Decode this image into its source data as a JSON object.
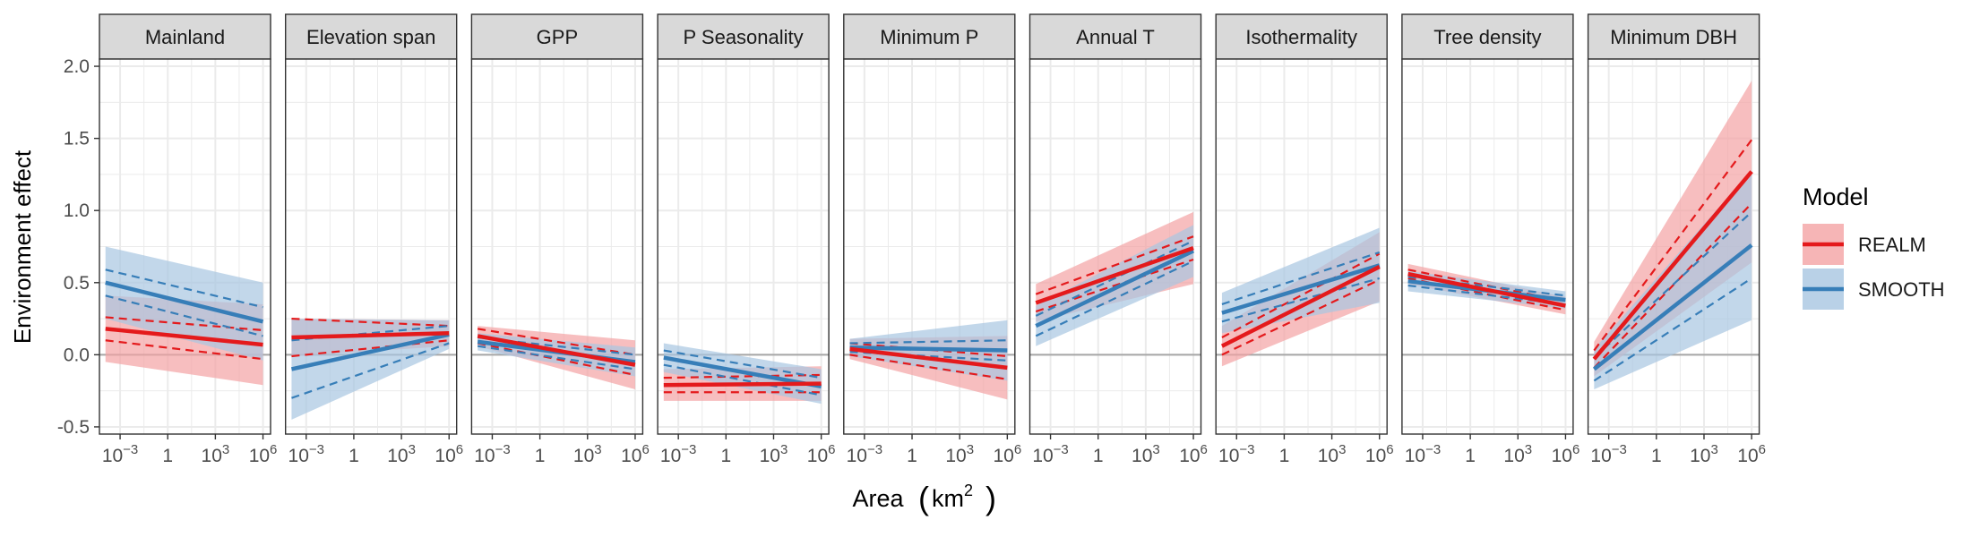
{
  "chart_data": {
    "type": "line",
    "facet_by": "Environment variable",
    "xlabel_main": "Area",
    "xlabel_unit_base": "km",
    "xlabel_unit_exp": "2",
    "ylabel": "Environment effect",
    "x_scale": "log10",
    "x_range_km2": [
      5e-05,
      3000000
    ],
    "x_ticks": [
      {
        "value": 0.001,
        "base": "10",
        "exp": "−3"
      },
      {
        "value": 1,
        "base": "1",
        "exp": ""
      },
      {
        "value": 1000,
        "base": "10",
        "exp": "3"
      },
      {
        "value": 1000000,
        "base": "10",
        "exp": "6"
      }
    ],
    "y_range": [
      -0.55,
      2.05
    ],
    "y_ticks": [
      "2.0",
      "1.5",
      "1.0",
      "0.5",
      "0.0",
      "-0.5"
    ],
    "reference_line_y": 0,
    "grid": true,
    "legend_title": "Model",
    "legend_position": "right",
    "series": [
      {
        "name": "REALM",
        "color": "#e41a1c",
        "band_color": "#f4a3a4"
      },
      {
        "name": "SMOOTH",
        "color": "#377eb8",
        "band_color": "#a8c6e1"
      }
    ],
    "panels": [
      {
        "title": "Mainland",
        "REALM": {
          "start": 0.18,
          "end": 0.07,
          "inner": [
            0.08,
            0.1
          ],
          "outer": [
            0.23,
            0.28
          ]
        },
        "SMOOTH": {
          "start": 0.5,
          "end": 0.23,
          "inner": [
            0.09,
            0.1
          ],
          "outer": [
            0.25,
            0.27
          ]
        }
      },
      {
        "title": "Elevation span",
        "REALM": {
          "start": 0.12,
          "end": 0.15,
          "inner": [
            0.13,
            0.05
          ],
          "outer": [
            0.13,
            0.09
          ]
        },
        "SMOOTH": {
          "start": -0.1,
          "end": 0.14,
          "inner": [
            0.2,
            0.06
          ],
          "outer": [
            0.35,
            0.1
          ]
        }
      },
      {
        "title": "GPP",
        "REALM": {
          "start": 0.13,
          "end": -0.07,
          "inner": [
            0.05,
            0.07
          ],
          "outer": [
            0.07,
            0.17
          ]
        },
        "SMOOTH": {
          "start": 0.09,
          "end": -0.05,
          "inner": [
            0.03,
            0.05
          ],
          "outer": [
            0.06,
            0.1
          ]
        }
      },
      {
        "title": "P Seasonality",
        "REALM": {
          "start": -0.21,
          "end": -0.2,
          "inner": [
            0.05,
            0.06
          ],
          "outer": [
            0.11,
            0.12
          ]
        },
        "SMOOTH": {
          "start": -0.02,
          "end": -0.22,
          "inner": [
            0.05,
            0.06
          ],
          "outer": [
            0.1,
            0.12
          ]
        }
      },
      {
        "title": "Minimum P",
        "REALM": {
          "start": 0.04,
          "end": -0.09,
          "inner": [
            0.04,
            0.08
          ],
          "outer": [
            0.07,
            0.22
          ]
        },
        "SMOOTH": {
          "start": 0.05,
          "end": 0.03,
          "inner": [
            0.03,
            0.07
          ],
          "outer": [
            0.06,
            0.21
          ]
        }
      },
      {
        "title": "Annual T",
        "REALM": {
          "start": 0.36,
          "end": 0.74,
          "inner": [
            0.06,
            0.08
          ],
          "outer": [
            0.13,
            0.25
          ]
        },
        "SMOOTH": {
          "start": 0.2,
          "end": 0.72,
          "inner": [
            0.07,
            0.07
          ],
          "outer": [
            0.14,
            0.18
          ]
        }
      },
      {
        "title": "Isothermality",
        "REALM": {
          "start": 0.06,
          "end": 0.61,
          "inner": [
            0.06,
            0.09
          ],
          "outer": [
            0.14,
            0.24
          ]
        },
        "SMOOTH": {
          "start": 0.29,
          "end": 0.62,
          "inner": [
            0.06,
            0.09
          ],
          "outer": [
            0.14,
            0.26
          ]
        }
      },
      {
        "title": "Tree density",
        "REALM": {
          "start": 0.56,
          "end": 0.34,
          "inner": [
            0.03,
            0.03
          ],
          "outer": [
            0.07,
            0.06
          ]
        },
        "SMOOTH": {
          "start": 0.51,
          "end": 0.38,
          "inner": [
            0.03,
            0.03
          ],
          "outer": [
            0.07,
            0.06
          ]
        }
      },
      {
        "title": "Minimum DBH",
        "REALM": {
          "start": -0.03,
          "end": 1.27,
          "inner": [
            0.06,
            0.22
          ],
          "outer": [
            0.12,
            0.63
          ]
        },
        "SMOOTH": {
          "start": -0.1,
          "end": 0.76,
          "inner": [
            0.08,
            0.23
          ],
          "outer": [
            0.14,
            0.52
          ]
        }
      }
    ]
  }
}
